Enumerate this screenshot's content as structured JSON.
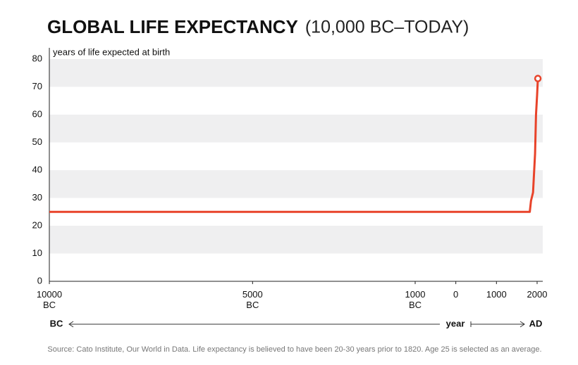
{
  "chart_data": {
    "type": "line",
    "title": "GLOBAL LIFE EXPECTANCY",
    "subtitle": "(10,000 BC–TODAY)",
    "y_label": "years of life expected at birth",
    "x_axis_left": "BC",
    "x_label": "year",
    "x_axis_right": "AD",
    "source": "Source: Cato Institute, Our World in Data. Life expectancy is believed to have been 20-30 years prior to 1820. Age 25 is selected as an average.",
    "x": [
      -10000,
      1820,
      1850,
      1900,
      1950,
      1973,
      2000,
      2019
    ],
    "series": [
      {
        "color": "#e8432a",
        "values": [
          25,
          25,
          29,
          32,
          46,
          60,
          67,
          73
        ]
      }
    ],
    "xlim": [
      -10000,
      2139
    ],
    "ylim": [
      0,
      80
    ],
    "xticks": [
      {
        "value": -10000,
        "label": "10000\nBC"
      },
      {
        "value": -5000,
        "label": "5000\nBC"
      },
      {
        "value": -1000,
        "label": "1000\nBC"
      },
      0,
      1000,
      2000
    ],
    "yticks": [
      0,
      10,
      20,
      30,
      40,
      50,
      60,
      70,
      80
    ],
    "grid": "bands"
  }
}
